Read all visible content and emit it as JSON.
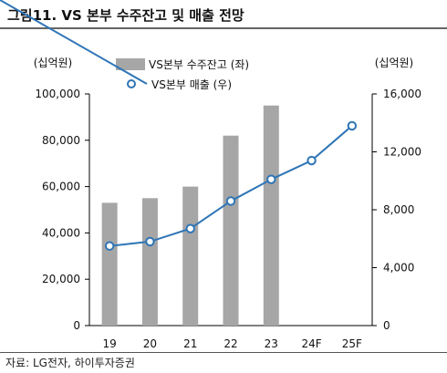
{
  "header": {
    "title": "그림11.  VS 본부 수주잔고 및 매출 전망"
  },
  "source": "자료: LG전자, 하이투자증권",
  "colors": {
    "bar": "#a6a6a6",
    "line": "#2e75b6",
    "marker_fill": "#ffffff"
  },
  "chart_data": {
    "type": "bar+line",
    "categories": [
      "19",
      "20",
      "21",
      "22",
      "23",
      "24F",
      "25F"
    ],
    "y_left": {
      "unit": "(십억원)",
      "range": [
        0,
        100000
      ],
      "ticks": [
        "0",
        "20,000",
        "40,000",
        "60,000",
        "80,000",
        "100,000"
      ]
    },
    "y_right": {
      "unit": "(십억원)",
      "range": [
        0,
        16000
      ],
      "ticks": [
        "0",
        "4,000",
        "8,000",
        "12,000",
        "16,000"
      ]
    },
    "series": [
      {
        "name": "VS본부 수주잔고 (좌)",
        "type": "bar",
        "axis": "left",
        "values": [
          53000,
          55000,
          60000,
          82000,
          95000,
          null,
          null
        ]
      },
      {
        "name": "VS본부 매출 (우)",
        "type": "line",
        "axis": "right",
        "values": [
          5500,
          5800,
          6700,
          8600,
          10100,
          11400,
          13800
        ]
      }
    ],
    "legend": "top-center",
    "grid": false
  }
}
